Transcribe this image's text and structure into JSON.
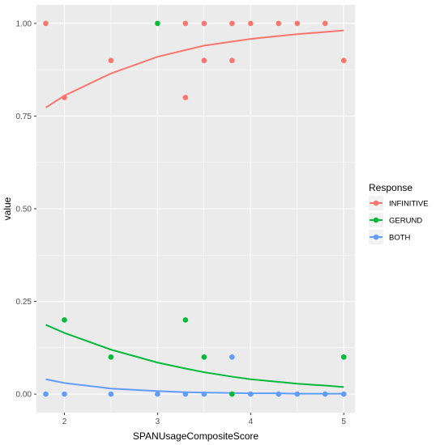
{
  "chart_data": {
    "type": "scatter",
    "xlabel": "SPANUsageCompositeScore",
    "ylabel": "value",
    "xlim": [
      1.7,
      5.12
    ],
    "ylim": [
      -0.05,
      1.05
    ],
    "x_ticks": [
      2,
      3,
      4,
      5
    ],
    "x_tick_labels": [
      "2",
      "3",
      "4",
      "5"
    ],
    "y_ticks": [
      0,
      0.25,
      0.5,
      0.75,
      1
    ],
    "y_tick_labels": [
      "0.00",
      "0.25",
      "0.50",
      "0.75",
      "1.00"
    ],
    "grid": true,
    "legend": {
      "title": "Response",
      "position": "right"
    },
    "series": [
      {
        "name": "INFINITIVE",
        "color": "#F8766D",
        "points": [
          [
            1.8,
            1.0
          ],
          [
            2.0,
            0.8
          ],
          [
            2.5,
            0.9
          ],
          [
            3.3,
            1.0
          ],
          [
            3.3,
            0.8
          ],
          [
            3.5,
            1.0
          ],
          [
            3.5,
            0.9
          ],
          [
            3.8,
            1.0
          ],
          [
            3.8,
            0.9
          ],
          [
            4.0,
            1.0
          ],
          [
            4.3,
            1.0
          ],
          [
            4.5,
            1.0
          ],
          [
            4.8,
            1.0
          ],
          [
            5.0,
            0.9
          ]
        ],
        "fit": [
          [
            1.8,
            0.773
          ],
          [
            2.0,
            0.805
          ],
          [
            2.5,
            0.865
          ],
          [
            3.0,
            0.91
          ],
          [
            3.3,
            0.928
          ],
          [
            3.5,
            0.94
          ],
          [
            3.8,
            0.951
          ],
          [
            4.0,
            0.958
          ],
          [
            4.3,
            0.966
          ],
          [
            4.5,
            0.971
          ],
          [
            4.8,
            0.977
          ],
          [
            5.0,
            0.981
          ]
        ]
      },
      {
        "name": "GERUND",
        "color": "#00BA38",
        "points": [
          [
            2.0,
            0.2
          ],
          [
            2.5,
            0.1
          ],
          [
            3.0,
            1.0
          ],
          [
            3.3,
            0.2
          ],
          [
            3.5,
            0.1
          ],
          [
            3.8,
            0.0
          ],
          [
            5.0,
            0.1
          ]
        ],
        "fit": [
          [
            1.8,
            0.187
          ],
          [
            2.0,
            0.165
          ],
          [
            2.5,
            0.12
          ],
          [
            3.0,
            0.085
          ],
          [
            3.3,
            0.069
          ],
          [
            3.5,
            0.059
          ],
          [
            3.8,
            0.047
          ],
          [
            4.0,
            0.04
          ],
          [
            4.3,
            0.033
          ],
          [
            4.5,
            0.028
          ],
          [
            4.8,
            0.023
          ],
          [
            5.0,
            0.019
          ]
        ]
      },
      {
        "name": "BOTH",
        "color": "#619CFF",
        "points": [
          [
            1.8,
            0.0
          ],
          [
            2.0,
            0.0
          ],
          [
            2.5,
            0.0
          ],
          [
            3.0,
            0.0
          ],
          [
            3.3,
            0.0
          ],
          [
            3.5,
            0.0
          ],
          [
            3.8,
            0.1
          ],
          [
            4.0,
            0.0
          ],
          [
            4.3,
            0.0
          ],
          [
            4.5,
            0.0
          ],
          [
            4.8,
            0.0
          ],
          [
            5.0,
            0.0
          ]
        ],
        "fit": [
          [
            1.8,
            0.04
          ],
          [
            2.0,
            0.03
          ],
          [
            2.5,
            0.015
          ],
          [
            3.0,
            0.008
          ],
          [
            3.3,
            0.005
          ],
          [
            3.5,
            0.004
          ],
          [
            3.8,
            0.003
          ],
          [
            4.0,
            0.002
          ],
          [
            4.3,
            0.002
          ],
          [
            4.5,
            0.001
          ],
          [
            4.8,
            0.001
          ],
          [
            5.0,
            0.001
          ]
        ]
      }
    ]
  }
}
